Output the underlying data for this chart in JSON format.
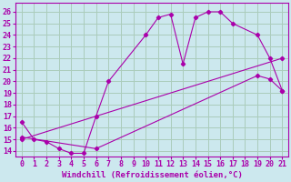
{
  "xlabel": "Windchill (Refroidissement éolien,°C)",
  "bg_color": "#cce8ee",
  "line_color": "#aa00aa",
  "grid_color": "#aaccbb",
  "ylim": [
    13.5,
    26.8
  ],
  "xlim": [
    -0.5,
    21.5
  ],
  "yticks": [
    14,
    15,
    16,
    17,
    18,
    19,
    20,
    21,
    22,
    23,
    24,
    25,
    26
  ],
  "xticks": [
    0,
    1,
    2,
    3,
    4,
    5,
    6,
    7,
    8,
    9,
    10,
    11,
    12,
    13,
    14,
    15,
    16,
    17,
    18,
    19,
    20,
    21
  ],
  "line1_x": [
    0,
    1,
    2,
    3,
    4,
    5,
    6,
    7,
    10,
    11,
    12,
    13,
    14,
    15,
    16,
    17,
    19,
    20,
    21
  ],
  "line1_y": [
    16.5,
    15.0,
    14.8,
    14.2,
    13.8,
    13.8,
    17.0,
    20.0,
    24.0,
    25.5,
    25.8,
    21.5,
    25.5,
    26.0,
    26.0,
    25.0,
    24.0,
    22.0,
    19.2
  ],
  "line2_x": [
    0,
    6,
    19,
    20,
    21
  ],
  "line2_y": [
    15.2,
    14.2,
    20.5,
    20.2,
    19.2
  ],
  "line3_x": [
    0,
    21
  ],
  "line3_y": [
    15.0,
    22.0
  ],
  "fontsize_label": 6.5,
  "fontsize_tick": 6
}
